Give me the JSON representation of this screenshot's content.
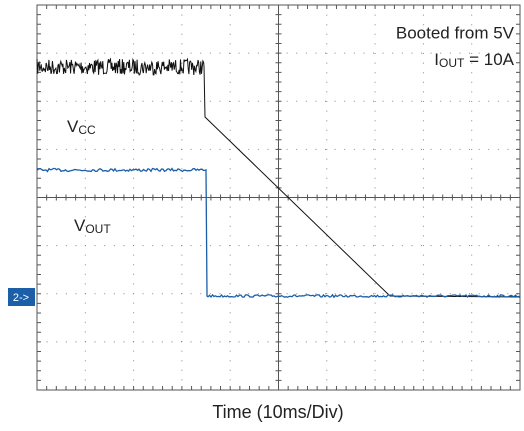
{
  "chart_data": {
    "type": "scope",
    "annotation_1": "Booted from 5V",
    "annotation_2": {
      "main": "I",
      "sub": "OUT",
      "rest": " = 10A"
    },
    "trace_1_label": {
      "main": "V",
      "sub": "CC"
    },
    "trace_2_label": {
      "main": "V",
      "sub": "OUT"
    },
    "channel_marker": "2->",
    "x_label": "Time (10ms/Div)"
  }
}
